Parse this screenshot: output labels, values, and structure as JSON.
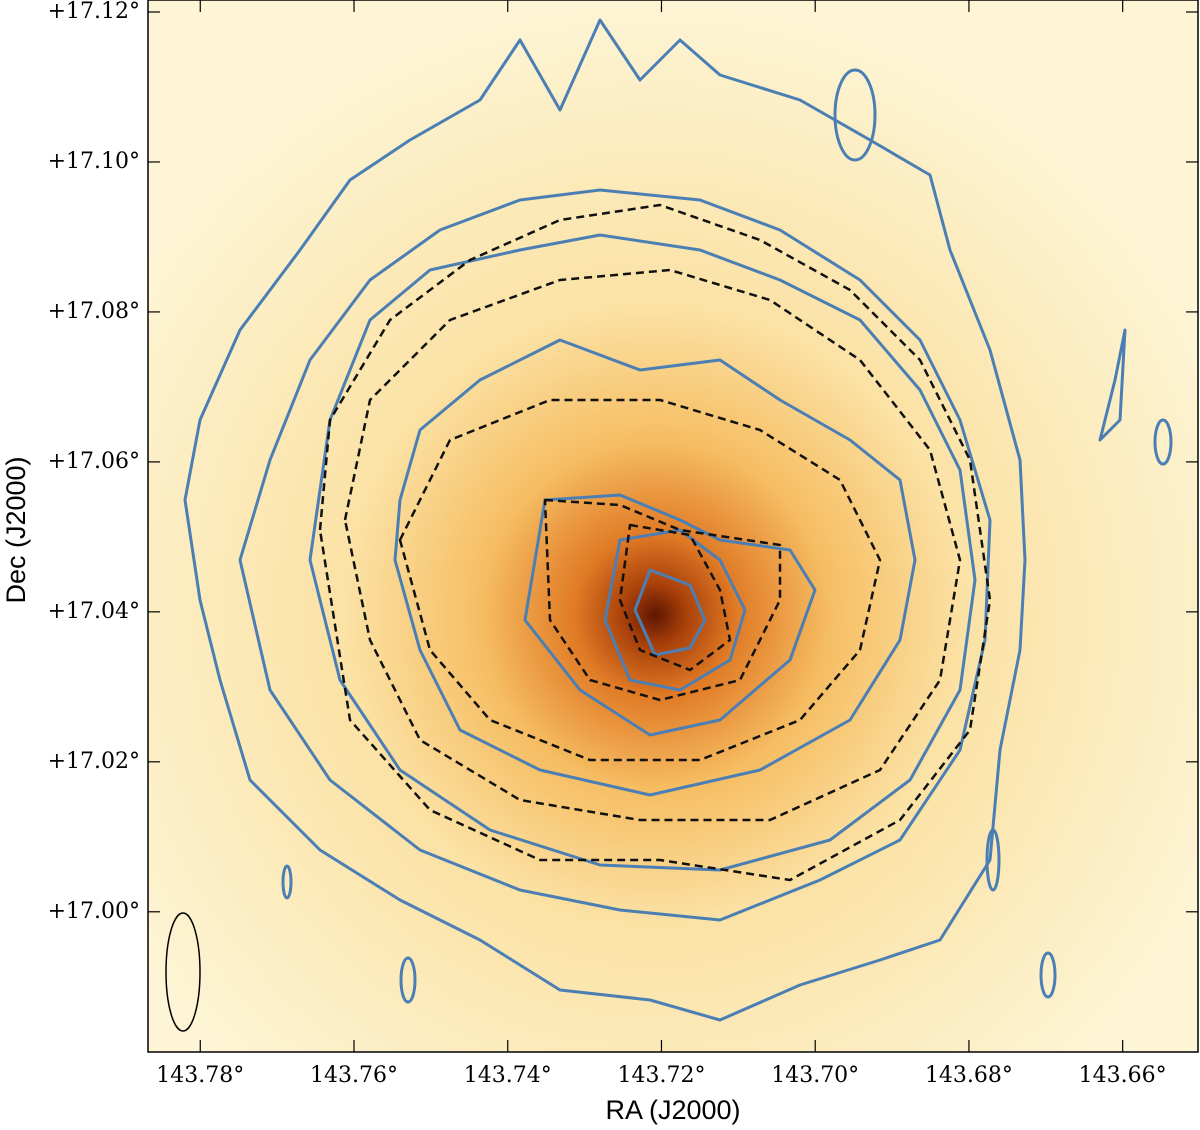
{
  "chart_data": {
    "type": "image",
    "xlabel": "RA (J2000)",
    "ylabel": "Dec (J2000)",
    "xlim": [
      143.7868,
      143.6502
    ],
    "ylim": [
      16.9813,
      17.1216
    ],
    "xticks": [
      {
        "value": 143.78,
        "label": "143.78°"
      },
      {
        "value": 143.76,
        "label": "143.76°"
      },
      {
        "value": 143.74,
        "label": "143.74°"
      },
      {
        "value": 143.72,
        "label": "143.72°"
      },
      {
        "value": 143.7,
        "label": "143.70°"
      },
      {
        "value": 143.68,
        "label": "143.68°"
      },
      {
        "value": 143.66,
        "label": "143.66°"
      }
    ],
    "yticks": [
      {
        "value": 17.0,
        "label": "+17.00°"
      },
      {
        "value": 17.02,
        "label": "+17.02°"
      },
      {
        "value": 17.04,
        "label": "+17.04°"
      },
      {
        "value": 17.06,
        "label": "+17.06°"
      },
      {
        "value": 17.08,
        "label": "+17.08°"
      },
      {
        "value": 17.1,
        "label": "+17.10°"
      },
      {
        "value": 17.12,
        "label": "+17.12°"
      }
    ]
  }
}
